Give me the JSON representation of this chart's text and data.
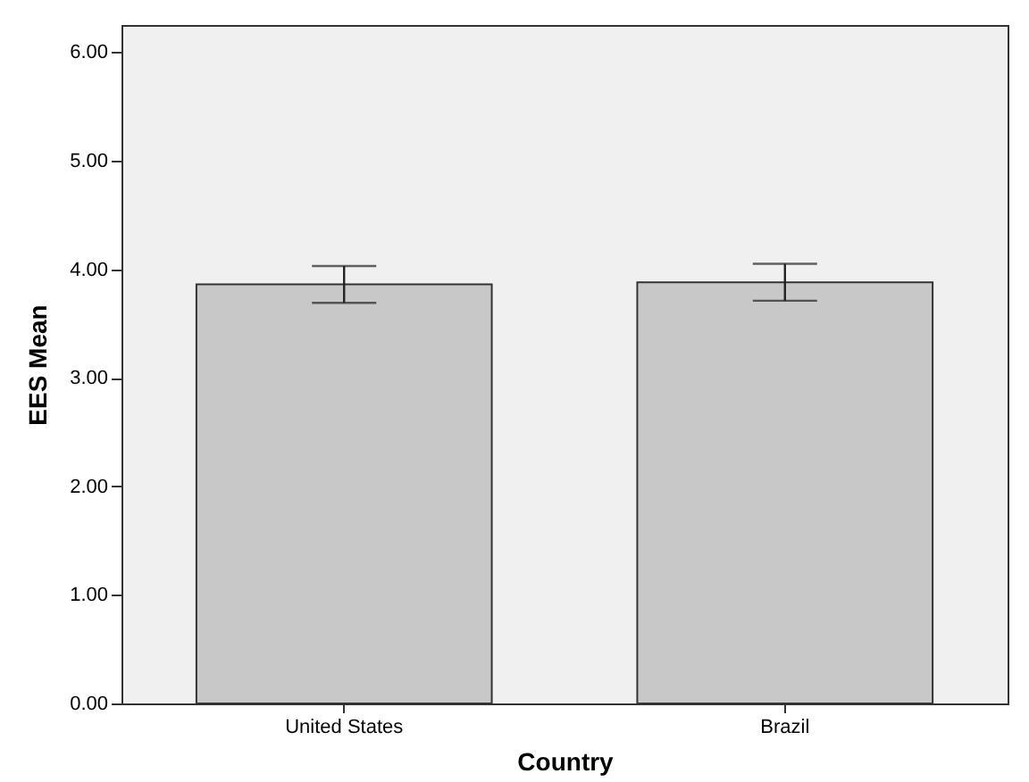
{
  "chart_data": {
    "type": "bar",
    "xlabel": "Country",
    "ylabel": "EES Mean",
    "categories": [
      "United States",
      "Brazil"
    ],
    "values": [
      3.86,
      3.88
    ],
    "errors": [
      [
        3.69,
        4.03
      ],
      [
        3.71,
        4.05
      ]
    ],
    "color": "#c8c8c8",
    "ylim": [
      0,
      6.25
    ],
    "yticks": [
      {
        "value": 0,
        "label": "0.00"
      },
      {
        "value": 1,
        "label": "1.00"
      },
      {
        "value": 2,
        "label": "2.00"
      },
      {
        "value": 3,
        "label": "3.00"
      },
      {
        "value": 4,
        "label": "4.00"
      },
      {
        "value": 5,
        "label": "5.00"
      },
      {
        "value": 6,
        "label": "6.00"
      }
    ],
    "grid": false
  }
}
